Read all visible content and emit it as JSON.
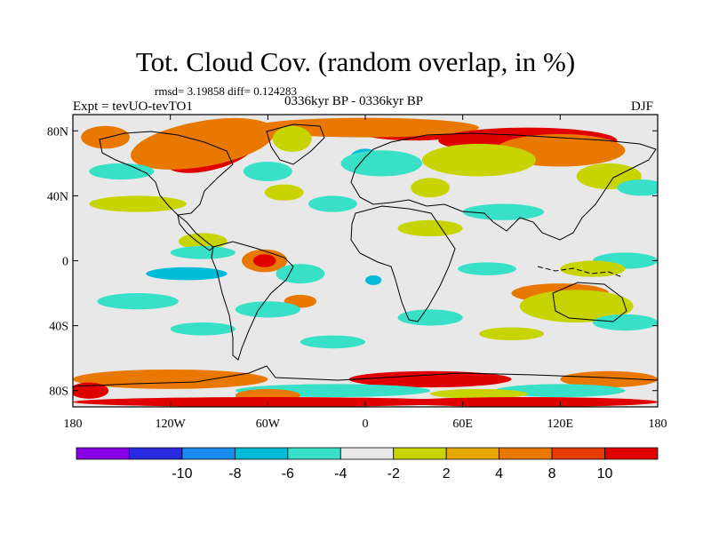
{
  "title": "Tot. Cloud Cov. (random overlap, in %)",
  "stats": "rmsd= 3.19858 diff= 0.124283",
  "experiment": "Expt = tevUO-tevTO1",
  "period": "0336kyr BP - 0336kyr BP",
  "season": "DJF",
  "map": {
    "projection": "equirectangular",
    "lon_range": [
      -180,
      180
    ],
    "lat_range": [
      -90,
      90
    ],
    "x_tick_labels": [
      "180",
      "120W",
      "60W",
      "0",
      "60E",
      "120E",
      "180"
    ],
    "y_tick_labels": [
      "80N",
      "40N",
      "0",
      "40S",
      "80S"
    ],
    "background_color": "#e8e8e8",
    "coastline_color": "#000000"
  },
  "colorbar": {
    "colors": [
      "#8a00e6",
      "#2a2ae0",
      "#1a8cf0",
      "#00bcd8",
      "#38e0c8",
      "#e8e8e8",
      "#c8d400",
      "#e6a800",
      "#e87800",
      "#e63c00",
      "#e00000"
    ],
    "labels": [
      "-10",
      "-8",
      "-6",
      "-4",
      "-2",
      "2",
      "4",
      "8",
      "10"
    ]
  },
  "field_regions": [
    {
      "level": 10,
      "lon": -95,
      "lat": 68,
      "rx": 30,
      "ry": 12,
      "rot": -15
    },
    {
      "level": 8,
      "lon": -100,
      "lat": 72,
      "rx": 45,
      "ry": 14,
      "rot": -10
    },
    {
      "level": 10,
      "lon": 30,
      "lat": 80,
      "rx": 35,
      "ry": 6,
      "rot": 0
    },
    {
      "level": 8,
      "lon": 0,
      "lat": 82,
      "rx": 70,
      "ry": 6,
      "rot": 0
    },
    {
      "level": 10,
      "lon": 100,
      "lat": 74,
      "rx": 55,
      "ry": 8,
      "rot": 0
    },
    {
      "level": 8,
      "lon": 120,
      "lat": 68,
      "rx": 40,
      "ry": 10,
      "rot": 0
    },
    {
      "level": 4,
      "lon": 70,
      "lat": 62,
      "rx": 35,
      "ry": 10,
      "rot": 0
    },
    {
      "level": 4,
      "lon": 150,
      "lat": 52,
      "rx": 20,
      "ry": 8,
      "rot": 0
    },
    {
      "level": 8,
      "lon": -160,
      "lat": 76,
      "rx": 15,
      "ry": 7,
      "rot": 0
    },
    {
      "level": 4,
      "lon": -45,
      "lat": 75,
      "rx": 12,
      "ry": 8,
      "rot": 0
    },
    {
      "level": -6,
      "lon": 0,
      "lat": 62,
      "rx": 10,
      "ry": 7,
      "rot": 0
    },
    {
      "level": -4,
      "lon": 10,
      "lat": 60,
      "rx": 25,
      "ry": 8,
      "rot": 0
    },
    {
      "level": -4,
      "lon": -150,
      "lat": 55,
      "rx": 20,
      "ry": 5,
      "rot": 0
    },
    {
      "level": -4,
      "lon": -60,
      "lat": 55,
      "rx": 15,
      "ry": 6,
      "rot": 0
    },
    {
      "level": -4,
      "lon": 170,
      "lat": 45,
      "rx": 15,
      "ry": 5,
      "rot": 0
    },
    {
      "level": 4,
      "lon": -140,
      "lat": 35,
      "rx": 30,
      "ry": 5,
      "rot": 0
    },
    {
      "level": 4,
      "lon": -50,
      "lat": 42,
      "rx": 12,
      "ry": 5,
      "rot": 0
    },
    {
      "level": 4,
      "lon": 40,
      "lat": 45,
      "rx": 12,
      "ry": 6,
      "rot": 0
    },
    {
      "level": -4,
      "lon": 85,
      "lat": 30,
      "rx": 25,
      "ry": 5,
      "rot": 0
    },
    {
      "level": -4,
      "lon": -20,
      "lat": 35,
      "rx": 15,
      "ry": 5,
      "rot": 0
    },
    {
      "level": 4,
      "lon": -100,
      "lat": 12,
      "rx": 15,
      "ry": 5,
      "rot": 0
    },
    {
      "level": 4,
      "lon": 40,
      "lat": 20,
      "rx": 20,
      "ry": 5,
      "rot": 0
    },
    {
      "level": 8,
      "lon": -62,
      "lat": 0,
      "rx": 14,
      "ry": 7,
      "rot": 0
    },
    {
      "level": 10,
      "lon": -62,
      "lat": 0,
      "rx": 7,
      "ry": 4,
      "rot": 0
    },
    {
      "level": -4,
      "lon": -100,
      "lat": 5,
      "rx": 20,
      "ry": 4,
      "rot": 0
    },
    {
      "level": -6,
      "lon": -110,
      "lat": -8,
      "rx": 25,
      "ry": 4,
      "rot": 0
    },
    {
      "level": -4,
      "lon": -40,
      "lat": -8,
      "rx": 15,
      "ry": 6,
      "rot": 0
    },
    {
      "level": -6,
      "lon": 5,
      "lat": -12,
      "rx": 5,
      "ry": 3,
      "rot": 0
    },
    {
      "level": -4,
      "lon": 75,
      "lat": -5,
      "rx": 18,
      "ry": 4,
      "rot": 0
    },
    {
      "level": -4,
      "lon": 160,
      "lat": 0,
      "rx": 20,
      "ry": 5,
      "rot": 0
    },
    {
      "level": 4,
      "lon": 140,
      "lat": -5,
      "rx": 20,
      "ry": 5,
      "rot": 0
    },
    {
      "level": 8,
      "lon": 120,
      "lat": -20,
      "rx": 30,
      "ry": 6,
      "rot": 0
    },
    {
      "level": 4,
      "lon": 130,
      "lat": -28,
      "rx": 35,
      "ry": 10,
      "rot": 0
    },
    {
      "level": 8,
      "lon": -40,
      "lat": -25,
      "rx": 10,
      "ry": 4,
      "rot": 0
    },
    {
      "level": -4,
      "lon": -140,
      "lat": -25,
      "rx": 25,
      "ry": 5,
      "rot": 0
    },
    {
      "level": -4,
      "lon": -60,
      "lat": -30,
      "rx": 20,
      "ry": 5,
      "rot": 0
    },
    {
      "level": -4,
      "lon": 40,
      "lat": -35,
      "rx": 20,
      "ry": 5,
      "rot": 0
    },
    {
      "level": -4,
      "lon": 160,
      "lat": -38,
      "rx": 20,
      "ry": 5,
      "rot": 0
    },
    {
      "level": -4,
      "lon": -100,
      "lat": -42,
      "rx": 20,
      "ry": 4,
      "rot": 0
    },
    {
      "level": 4,
      "lon": 90,
      "lat": -45,
      "rx": 20,
      "ry": 4,
      "rot": 0
    },
    {
      "level": -4,
      "lon": -20,
      "lat": -50,
      "rx": 20,
      "ry": 4,
      "rot": 0
    },
    {
      "level": 8,
      "lon": -120,
      "lat": -73,
      "rx": 60,
      "ry": 6,
      "rot": 0
    },
    {
      "level": 10,
      "lon": 40,
      "lat": -73,
      "rx": 50,
      "ry": 5,
      "rot": 0
    },
    {
      "level": 8,
      "lon": 150,
      "lat": -73,
      "rx": 30,
      "ry": 5,
      "rot": 0
    },
    {
      "level": -4,
      "lon": -20,
      "lat": -80,
      "rx": 60,
      "ry": 4,
      "rot": 0
    },
    {
      "level": -4,
      "lon": 120,
      "lat": -80,
      "rx": 40,
      "ry": 4,
      "rot": 0
    },
    {
      "level": 4,
      "lon": 70,
      "lat": -82,
      "rx": 30,
      "ry": 3,
      "rot": 0
    },
    {
      "level": 10,
      "lon": -170,
      "lat": -80,
      "rx": 12,
      "ry": 5,
      "rot": 0
    },
    {
      "level": 8,
      "lon": -60,
      "lat": -83,
      "rx": 20,
      "ry": 4,
      "rot": 0
    },
    {
      "level": 10,
      "lon": -60,
      "lat": -87,
      "rx": 120,
      "ry": 3,
      "rot": 0
    },
    {
      "level": 10,
      "lon": 100,
      "lat": -87,
      "rx": 80,
      "ry": 3,
      "rot": 0
    }
  ]
}
